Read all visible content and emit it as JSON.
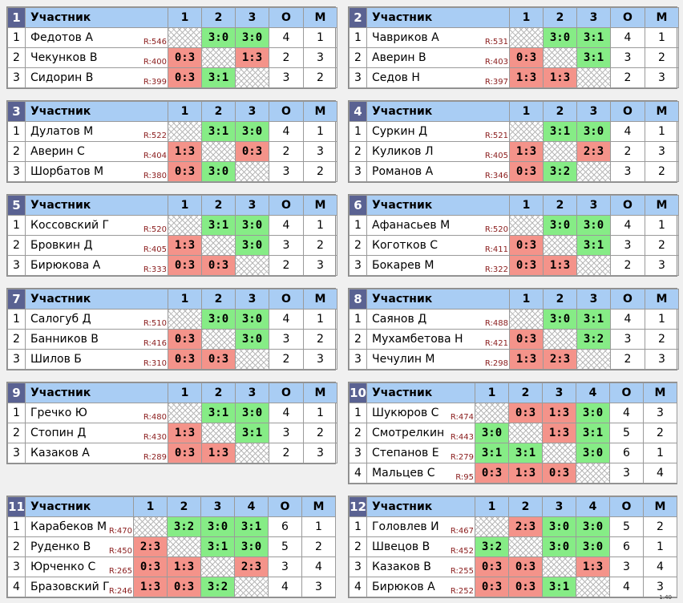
{
  "header": {
    "participant": "Участник",
    "points": "О",
    "place": "М"
  },
  "version": "1.40",
  "groups": [
    {
      "number": "1",
      "cols": [
        "1",
        "2",
        "3"
      ],
      "players": [
        {
          "idx": "1",
          "name": "Федотов А",
          "rating": "R:546",
          "results": [
            "",
            "3:0",
            "3:0"
          ],
          "points": "4",
          "place": "1"
        },
        {
          "idx": "2",
          "name": "Чекунков В",
          "rating": "R:400",
          "results": [
            "0:3",
            "",
            "1:3"
          ],
          "points": "2",
          "place": "3"
        },
        {
          "idx": "3",
          "name": "Сидорин В",
          "rating": "R:399",
          "results": [
            "0:3",
            "3:1",
            ""
          ],
          "points": "3",
          "place": "2"
        }
      ]
    },
    {
      "number": "2",
      "cols": [
        "1",
        "2",
        "3"
      ],
      "players": [
        {
          "idx": "1",
          "name": "Чавриков А",
          "rating": "R:531",
          "results": [
            "",
            "3:0",
            "3:1"
          ],
          "points": "4",
          "place": "1"
        },
        {
          "idx": "2",
          "name": "Аверин В",
          "rating": "R:403",
          "results": [
            "0:3",
            "",
            "3:1"
          ],
          "points": "3",
          "place": "2"
        },
        {
          "idx": "3",
          "name": "Седов Н",
          "rating": "R:397",
          "results": [
            "1:3",
            "1:3",
            ""
          ],
          "points": "2",
          "place": "3"
        }
      ]
    },
    {
      "number": "3",
      "cols": [
        "1",
        "2",
        "3"
      ],
      "players": [
        {
          "idx": "1",
          "name": "Дулатов М",
          "rating": "R:522",
          "results": [
            "",
            "3:1",
            "3:0"
          ],
          "points": "4",
          "place": "1"
        },
        {
          "idx": "2",
          "name": "Аверин С",
          "rating": "R:404",
          "results": [
            "1:3",
            "",
            "0:3"
          ],
          "points": "2",
          "place": "3"
        },
        {
          "idx": "3",
          "name": "Шорбатов М",
          "rating": "R:380",
          "results": [
            "0:3",
            "3:0",
            ""
          ],
          "points": "3",
          "place": "2"
        }
      ]
    },
    {
      "number": "4",
      "cols": [
        "1",
        "2",
        "3"
      ],
      "players": [
        {
          "idx": "1",
          "name": "Суркин Д",
          "rating": "R:521",
          "results": [
            "",
            "3:1",
            "3:0"
          ],
          "points": "4",
          "place": "1"
        },
        {
          "idx": "2",
          "name": "Куликов Л",
          "rating": "R:405",
          "results": [
            "1:3",
            "",
            "2:3"
          ],
          "points": "2",
          "place": "3"
        },
        {
          "idx": "3",
          "name": "Романов А",
          "rating": "R:346",
          "results": [
            "0:3",
            "3:2",
            ""
          ],
          "points": "3",
          "place": "2"
        }
      ]
    },
    {
      "number": "5",
      "cols": [
        "1",
        "2",
        "3"
      ],
      "players": [
        {
          "idx": "1",
          "name": "Коссовский Г",
          "rating": "R:520",
          "results": [
            "",
            "3:1",
            "3:0"
          ],
          "points": "4",
          "place": "1"
        },
        {
          "idx": "2",
          "name": "Бровкин Д",
          "rating": "R:405",
          "results": [
            "1:3",
            "",
            "3:0"
          ],
          "points": "3",
          "place": "2"
        },
        {
          "idx": "3",
          "name": "Бирюкова А",
          "rating": "R:333",
          "results": [
            "0:3",
            "0:3",
            ""
          ],
          "points": "2",
          "place": "3"
        }
      ]
    },
    {
      "number": "6",
      "cols": [
        "1",
        "2",
        "3"
      ],
      "players": [
        {
          "idx": "1",
          "name": "Афанасьев М",
          "rating": "R:520",
          "results": [
            "",
            "3:0",
            "3:0"
          ],
          "points": "4",
          "place": "1"
        },
        {
          "idx": "2",
          "name": "Коготков С",
          "rating": "R:411",
          "results": [
            "0:3",
            "",
            "3:1"
          ],
          "points": "3",
          "place": "2"
        },
        {
          "idx": "3",
          "name": "Бокарев М",
          "rating": "R:322",
          "results": [
            "0:3",
            "1:3",
            ""
          ],
          "points": "2",
          "place": "3"
        }
      ]
    },
    {
      "number": "7",
      "cols": [
        "1",
        "2",
        "3"
      ],
      "players": [
        {
          "idx": "1",
          "name": "Салогуб Д",
          "rating": "R:510",
          "results": [
            "",
            "3:0",
            "3:0"
          ],
          "points": "4",
          "place": "1"
        },
        {
          "idx": "2",
          "name": "Банников В",
          "rating": "R:416",
          "results": [
            "0:3",
            "",
            "3:0"
          ],
          "points": "3",
          "place": "2"
        },
        {
          "idx": "3",
          "name": "Шилов Б",
          "rating": "R:310",
          "results": [
            "0:3",
            "0:3",
            ""
          ],
          "points": "2",
          "place": "3"
        }
      ]
    },
    {
      "number": "8",
      "cols": [
        "1",
        "2",
        "3"
      ],
      "players": [
        {
          "idx": "1",
          "name": "Саянов Д",
          "rating": "R:488",
          "results": [
            "",
            "3:0",
            "3:1"
          ],
          "points": "4",
          "place": "1"
        },
        {
          "idx": "2",
          "name": "Мухамбетова Н",
          "rating": "R:421",
          "results": [
            "0:3",
            "",
            "3:2"
          ],
          "points": "3",
          "place": "2"
        },
        {
          "idx": "3",
          "name": "Чечулин М",
          "rating": "R:298",
          "results": [
            "1:3",
            "2:3",
            ""
          ],
          "points": "2",
          "place": "3"
        }
      ]
    },
    {
      "number": "9",
      "cols": [
        "1",
        "2",
        "3"
      ],
      "players": [
        {
          "idx": "1",
          "name": "Гречко Ю",
          "rating": "R:480",
          "results": [
            "",
            "3:1",
            "3:0"
          ],
          "points": "4",
          "place": "1"
        },
        {
          "idx": "2",
          "name": "Стопин Д",
          "rating": "R:430",
          "results": [
            "1:3",
            "",
            "3:1"
          ],
          "points": "3",
          "place": "2"
        },
        {
          "idx": "3",
          "name": "Казаков А",
          "rating": "R:289",
          "results": [
            "0:3",
            "1:3",
            ""
          ],
          "points": "2",
          "place": "3"
        }
      ]
    },
    {
      "number": "10",
      "cols": [
        "1",
        "2",
        "3",
        "4"
      ],
      "players": [
        {
          "idx": "1",
          "name": "Шукюров С",
          "rating": "R:474",
          "results": [
            "",
            "0:3",
            "1:3",
            "3:0"
          ],
          "points": "4",
          "place": "3"
        },
        {
          "idx": "2",
          "name": "Смотрелкин",
          "rating": "R:443",
          "results": [
            "3:0",
            "",
            "1:3",
            "3:1"
          ],
          "points": "5",
          "place": "2"
        },
        {
          "idx": "3",
          "name": "Степанов Е",
          "rating": "R:279",
          "results": [
            "3:1",
            "3:1",
            "",
            "3:0"
          ],
          "points": "6",
          "place": "1"
        },
        {
          "idx": "4",
          "name": "Мальцев С",
          "rating": "R:95",
          "results": [
            "0:3",
            "1:3",
            "0:3",
            ""
          ],
          "points": "3",
          "place": "4"
        }
      ]
    },
    {
      "number": "11",
      "cols": [
        "1",
        "2",
        "3",
        "4"
      ],
      "players": [
        {
          "idx": "1",
          "name": "Карабеков М",
          "rating": "R:470",
          "results": [
            "",
            "3:2",
            "3:0",
            "3:1"
          ],
          "points": "6",
          "place": "1"
        },
        {
          "idx": "2",
          "name": "Руденко В",
          "rating": "R:450",
          "results": [
            "2:3",
            "",
            "3:1",
            "3:0"
          ],
          "points": "5",
          "place": "2"
        },
        {
          "idx": "3",
          "name": "Юрченко С",
          "rating": "R:265",
          "results": [
            "0:3",
            "1:3",
            "",
            "2:3"
          ],
          "points": "3",
          "place": "4"
        },
        {
          "idx": "4",
          "name": "Бразовский Г",
          "rating": "R:246",
          "results": [
            "1:3",
            "0:3",
            "3:2",
            ""
          ],
          "points": "4",
          "place": "3"
        }
      ]
    },
    {
      "number": "12",
      "cols": [
        "1",
        "2",
        "3",
        "4"
      ],
      "players": [
        {
          "idx": "1",
          "name": "Головлев И",
          "rating": "R:467",
          "results": [
            "",
            "2:3",
            "3:0",
            "3:0"
          ],
          "points": "5",
          "place": "2"
        },
        {
          "idx": "2",
          "name": "Швецов В",
          "rating": "R:452",
          "results": [
            "3:2",
            "",
            "3:0",
            "3:0"
          ],
          "points": "6",
          "place": "1"
        },
        {
          "idx": "3",
          "name": "Казаков В",
          "rating": "R:255",
          "results": [
            "0:3",
            "0:3",
            "",
            "1:3"
          ],
          "points": "3",
          "place": "4"
        },
        {
          "idx": "4",
          "name": "Бирюков А",
          "rating": "R:252",
          "results": [
            "0:3",
            "0:3",
            "3:1",
            ""
          ],
          "points": "4",
          "place": "3"
        }
      ]
    }
  ]
}
